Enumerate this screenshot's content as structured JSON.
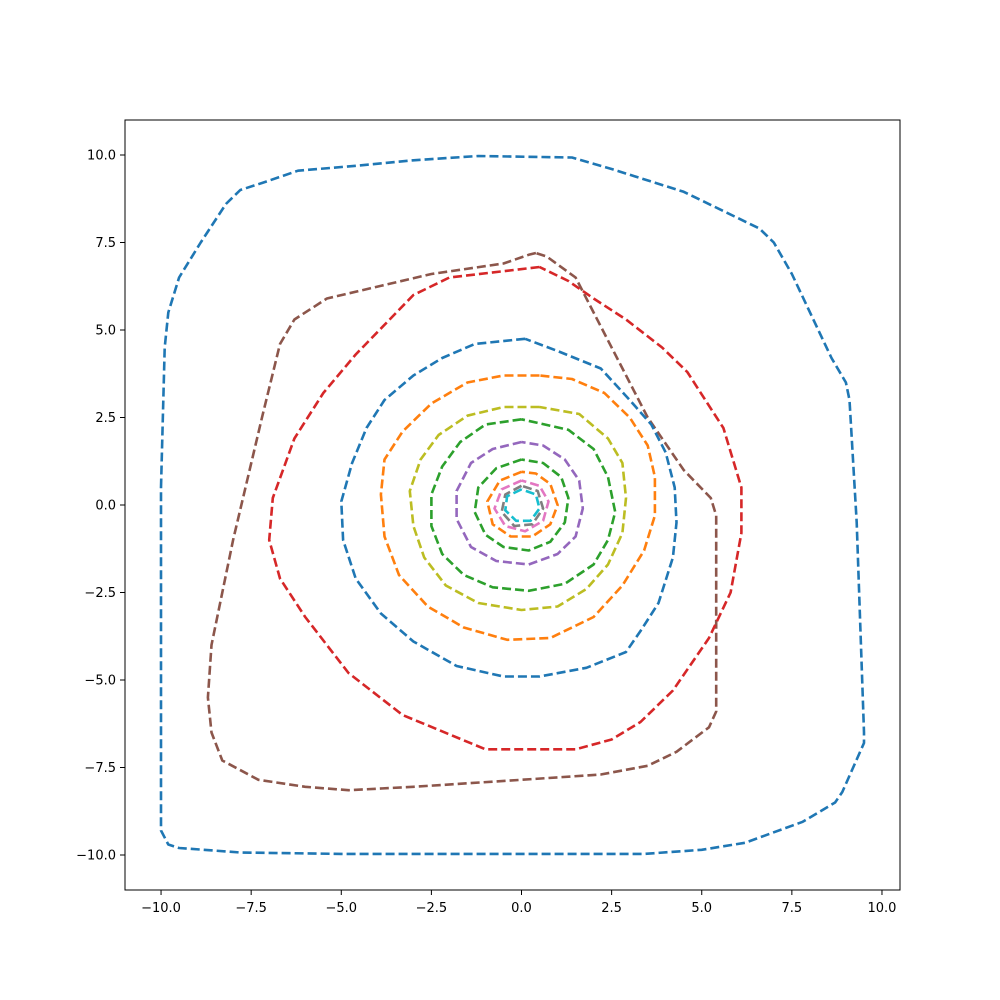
{
  "chart_data": {
    "type": "line",
    "title": "",
    "xlabel": "",
    "ylabel": "",
    "xlim": [
      -11,
      10.5
    ],
    "ylim": [
      -11,
      11
    ],
    "grid": false,
    "legend": "none",
    "line_style": "dashed",
    "x_ticks": [
      -10,
      -7.5,
      -5,
      -2.5,
      0,
      2.5,
      5,
      7.5,
      10
    ],
    "x_tick_labels": [
      "−10.0",
      "−7.5",
      "−5.0",
      "−2.5",
      "0.0",
      "2.5",
      "5.0",
      "7.5",
      "10.0"
    ],
    "y_ticks": [
      10,
      7.5,
      5,
      2.5,
      0,
      -2.5,
      -5,
      -7.5,
      -10
    ],
    "y_tick_labels": [
      "10.0",
      "7.5",
      "5.0",
      "2.5",
      "0.0",
      "−2.5",
      "−5.0",
      "−7.5",
      "−10.0"
    ],
    "series": [
      {
        "color": "#1f77b4",
        "points": [
          [
            -10,
            0.5
          ],
          [
            -9.9,
            4.5
          ],
          [
            -9.8,
            5.5
          ],
          [
            -9.5,
            6.5
          ],
          [
            -8.9,
            7.5
          ],
          [
            -8.2,
            8.6
          ],
          [
            -7.8,
            9.0
          ],
          [
            -7.2,
            9.2
          ],
          [
            -6.2,
            9.55
          ],
          [
            -4.5,
            9.7
          ],
          [
            -3.0,
            9.85
          ],
          [
            -1.2,
            9.97
          ],
          [
            1.4,
            9.93
          ],
          [
            2.5,
            9.6
          ],
          [
            4.5,
            8.95
          ],
          [
            6.6,
            7.9
          ],
          [
            7.0,
            7.5
          ],
          [
            7.5,
            6.6
          ],
          [
            8.6,
            4.2
          ],
          [
            9.0,
            3.5
          ],
          [
            9.1,
            3.0
          ],
          [
            9.3,
            -0.5
          ],
          [
            9.5,
            -6.5
          ],
          [
            9.5,
            -6.8
          ],
          [
            8.9,
            -8.2
          ],
          [
            8.7,
            -8.5
          ],
          [
            7.8,
            -9.05
          ],
          [
            6.2,
            -9.65
          ],
          [
            5.0,
            -9.85
          ],
          [
            3.4,
            -9.97
          ],
          [
            1.0,
            -9.97
          ],
          [
            -2.0,
            -9.97
          ],
          [
            -5.0,
            -9.97
          ],
          [
            -7.8,
            -9.93
          ],
          [
            -9.5,
            -9.8
          ],
          [
            -9.8,
            -9.7
          ],
          [
            -10,
            -9.3
          ],
          [
            -10,
            0.5
          ]
        ]
      },
      {
        "color": "#8c564b",
        "points": [
          [
            0.4,
            7.2
          ],
          [
            0.2,
            7.15
          ],
          [
            -0.5,
            6.9
          ],
          [
            -2.5,
            6.6
          ],
          [
            -5.4,
            5.9
          ],
          [
            -6.3,
            5.3
          ],
          [
            -6.7,
            4.6
          ],
          [
            -7.2,
            2.5
          ],
          [
            -8.0,
            -1.0
          ],
          [
            -8.6,
            -4.0
          ],
          [
            -8.7,
            -5.5
          ],
          [
            -8.6,
            -6.5
          ],
          [
            -8.3,
            -7.3
          ],
          [
            -7.3,
            -7.85
          ],
          [
            -6.0,
            -8.05
          ],
          [
            -4.8,
            -8.15
          ],
          [
            -3.0,
            -8.05
          ],
          [
            0.0,
            -7.85
          ],
          [
            2.2,
            -7.7
          ],
          [
            3.5,
            -7.45
          ],
          [
            4.3,
            -7.05
          ],
          [
            5.2,
            -6.35
          ],
          [
            5.4,
            -5.9
          ],
          [
            5.4,
            -0.3
          ],
          [
            5.25,
            0.2
          ],
          [
            4.5,
            1.0
          ],
          [
            3.5,
            2.5
          ],
          [
            1.5,
            6.5
          ],
          [
            0.7,
            7.1
          ],
          [
            0.4,
            7.2
          ]
        ]
      },
      {
        "color": "#d62728",
        "points": [
          [
            0.5,
            6.8
          ],
          [
            -2.0,
            6.5
          ],
          [
            -3.0,
            6.0
          ],
          [
            -4.6,
            4.3
          ],
          [
            -5.5,
            3.2
          ],
          [
            -6.3,
            1.9
          ],
          [
            -6.9,
            0.2
          ],
          [
            -7.0,
            -1.0
          ],
          [
            -6.7,
            -2.1
          ],
          [
            -6.0,
            -3.2
          ],
          [
            -4.8,
            -4.8
          ],
          [
            -3.3,
            -6.0
          ],
          [
            -1.0,
            -6.98
          ],
          [
            1.5,
            -6.98
          ],
          [
            2.5,
            -6.7
          ],
          [
            3.3,
            -6.2
          ],
          [
            4.2,
            -5.3
          ],
          [
            5.2,
            -3.8
          ],
          [
            5.8,
            -2.5
          ],
          [
            6.1,
            -0.8
          ],
          [
            6.1,
            0.5
          ],
          [
            5.6,
            2.2
          ],
          [
            5.1,
            3.0
          ],
          [
            4.6,
            3.8
          ],
          [
            3.9,
            4.5
          ],
          [
            2.9,
            5.3
          ],
          [
            2.0,
            5.9
          ],
          [
            1.3,
            6.4
          ],
          [
            0.5,
            6.8
          ]
        ]
      },
      {
        "color": "#1f77b4",
        "points": [
          [
            0.1,
            4.75
          ],
          [
            -1.3,
            4.6
          ],
          [
            -2.2,
            4.2
          ],
          [
            -3.0,
            3.7
          ],
          [
            -3.8,
            3.0
          ],
          [
            -4.3,
            2.2
          ],
          [
            -4.7,
            1.2
          ],
          [
            -5.0,
            0.1
          ],
          [
            -4.95,
            -1.0
          ],
          [
            -4.6,
            -2.1
          ],
          [
            -3.9,
            -3.1
          ],
          [
            -3.0,
            -3.9
          ],
          [
            -1.8,
            -4.6
          ],
          [
            -0.5,
            -4.9
          ],
          [
            0.5,
            -4.9
          ],
          [
            1.8,
            -4.65
          ],
          [
            2.9,
            -4.2
          ],
          [
            3.3,
            -3.6
          ],
          [
            3.8,
            -2.8
          ],
          [
            4.2,
            -1.5
          ],
          [
            4.3,
            -0.5
          ],
          [
            4.25,
            0.5
          ],
          [
            4.0,
            1.5
          ],
          [
            3.6,
            2.3
          ],
          [
            3.0,
            3.0
          ],
          [
            2.2,
            3.9
          ],
          [
            1.0,
            4.4
          ],
          [
            0.1,
            4.75
          ]
        ]
      },
      {
        "color": "#ff7f0e",
        "points": [
          [
            0.5,
            3.7
          ],
          [
            -0.5,
            3.7
          ],
          [
            -1.5,
            3.5
          ],
          [
            -2.5,
            2.9
          ],
          [
            -3.3,
            2.1
          ],
          [
            -3.8,
            1.3
          ],
          [
            -3.9,
            0.3
          ],
          [
            -3.8,
            -0.9
          ],
          [
            -3.4,
            -2.0
          ],
          [
            -2.6,
            -2.9
          ],
          [
            -1.6,
            -3.5
          ],
          [
            -0.4,
            -3.85
          ],
          [
            0.8,
            -3.8
          ],
          [
            2.0,
            -3.2
          ],
          [
            2.8,
            -2.3
          ],
          [
            3.4,
            -1.3
          ],
          [
            3.7,
            -0.3
          ],
          [
            3.7,
            0.8
          ],
          [
            3.5,
            1.7
          ],
          [
            3.0,
            2.5
          ],
          [
            2.3,
            3.2
          ],
          [
            1.4,
            3.6
          ],
          [
            0.5,
            3.7
          ]
        ]
      },
      {
        "color": "#bcbd22",
        "points": [
          [
            0.5,
            2.8
          ],
          [
            -0.5,
            2.8
          ],
          [
            -1.5,
            2.55
          ],
          [
            -2.3,
            2.0
          ],
          [
            -2.8,
            1.3
          ],
          [
            -3.1,
            0.4
          ],
          [
            -3.0,
            -0.6
          ],
          [
            -2.7,
            -1.5
          ],
          [
            -2.1,
            -2.3
          ],
          [
            -1.2,
            -2.8
          ],
          [
            0.0,
            -3.0
          ],
          [
            1.0,
            -2.9
          ],
          [
            1.8,
            -2.4
          ],
          [
            2.4,
            -1.7
          ],
          [
            2.8,
            -0.8
          ],
          [
            2.9,
            0.2
          ],
          [
            2.8,
            1.2
          ],
          [
            2.4,
            1.9
          ],
          [
            1.6,
            2.6
          ],
          [
            0.5,
            2.8
          ]
        ]
      },
      {
        "color": "#2ca02c",
        "points": [
          [
            0.0,
            2.45
          ],
          [
            -1.0,
            2.3
          ],
          [
            -1.7,
            1.8
          ],
          [
            -2.2,
            1.1
          ],
          [
            -2.5,
            0.3
          ],
          [
            -2.5,
            -0.6
          ],
          [
            -2.2,
            -1.4
          ],
          [
            -1.6,
            -2.0
          ],
          [
            -0.8,
            -2.35
          ],
          [
            0.2,
            -2.45
          ],
          [
            1.2,
            -2.25
          ],
          [
            2.0,
            -1.7
          ],
          [
            2.4,
            -1.0
          ],
          [
            2.6,
            -0.2
          ],
          [
            2.4,
            0.8
          ],
          [
            2.0,
            1.6
          ],
          [
            1.3,
            2.15
          ],
          [
            0.0,
            2.45
          ]
        ]
      },
      {
        "color": "#9467bd",
        "points": [
          [
            0.0,
            1.8
          ],
          [
            -0.8,
            1.6
          ],
          [
            -1.4,
            1.2
          ],
          [
            -1.8,
            0.4
          ],
          [
            -1.8,
            -0.4
          ],
          [
            -1.4,
            -1.2
          ],
          [
            -0.7,
            -1.6
          ],
          [
            0.2,
            -1.7
          ],
          [
            1.0,
            -1.4
          ],
          [
            1.5,
            -0.9
          ],
          [
            1.7,
            -0.1
          ],
          [
            1.6,
            0.7
          ],
          [
            1.2,
            1.3
          ],
          [
            0.6,
            1.7
          ],
          [
            0.0,
            1.8
          ]
        ]
      },
      {
        "color": "#2ca02c",
        "points": [
          [
            0.0,
            1.3
          ],
          [
            -0.7,
            1.05
          ],
          [
            -1.2,
            0.5
          ],
          [
            -1.3,
            -0.2
          ],
          [
            -1.0,
            -0.85
          ],
          [
            -0.5,
            -1.2
          ],
          [
            0.2,
            -1.3
          ],
          [
            0.8,
            -1.05
          ],
          [
            1.2,
            -0.5
          ],
          [
            1.3,
            0.2
          ],
          [
            1.1,
            0.8
          ],
          [
            0.6,
            1.2
          ],
          [
            0.0,
            1.3
          ]
        ]
      },
      {
        "color": "#ff7f0e",
        "points": [
          [
            0.0,
            0.95
          ],
          [
            -0.6,
            0.7
          ],
          [
            -0.95,
            0.1
          ],
          [
            -0.8,
            -0.55
          ],
          [
            -0.3,
            -0.9
          ],
          [
            0.3,
            -0.9
          ],
          [
            0.8,
            -0.55
          ],
          [
            1.0,
            0.0
          ],
          [
            0.8,
            0.6
          ],
          [
            0.4,
            0.9
          ],
          [
            0.0,
            0.95
          ]
        ]
      },
      {
        "color": "#e377c2",
        "points": [
          [
            0.0,
            0.7
          ],
          [
            -0.55,
            0.45
          ],
          [
            -0.75,
            -0.1
          ],
          [
            -0.45,
            -0.6
          ],
          [
            0.1,
            -0.75
          ],
          [
            0.6,
            -0.45
          ],
          [
            0.75,
            0.1
          ],
          [
            0.5,
            0.55
          ],
          [
            0.0,
            0.7
          ]
        ]
      },
      {
        "color": "#7f7f7f",
        "points": [
          [
            0.0,
            0.55
          ],
          [
            -0.45,
            0.3
          ],
          [
            -0.55,
            -0.2
          ],
          [
            -0.2,
            -0.6
          ],
          [
            0.3,
            -0.55
          ],
          [
            0.6,
            -0.1
          ],
          [
            0.45,
            0.4
          ],
          [
            0.0,
            0.55
          ]
        ]
      },
      {
        "color": "#17becf",
        "points": [
          [
            0.0,
            0.45
          ],
          [
            -0.4,
            0.25
          ],
          [
            -0.45,
            -0.15
          ],
          [
            -0.15,
            -0.45
          ],
          [
            0.25,
            -0.45
          ],
          [
            0.5,
            -0.1
          ],
          [
            0.4,
            0.3
          ],
          [
            0.0,
            0.45
          ]
        ]
      }
    ]
  }
}
